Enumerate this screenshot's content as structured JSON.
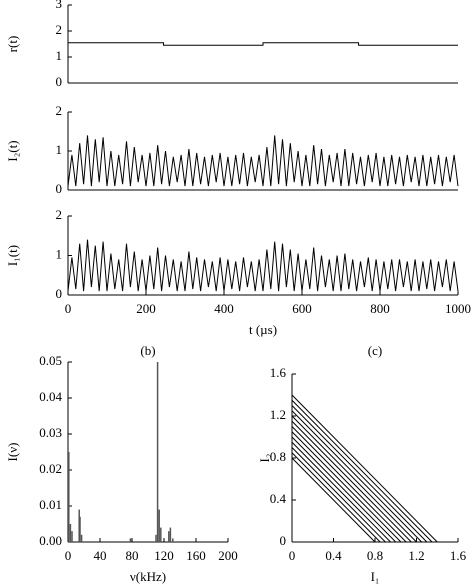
{
  "chart_data": [
    {
      "type": "line",
      "ylabel": "r(t)",
      "xlim": [
        0,
        1000
      ],
      "ylim": [
        0,
        3
      ],
      "yticks": [
        0,
        1,
        2,
        3
      ],
      "series": [
        {
          "color": "#000000",
          "x": [
            0,
            245,
            245,
            500,
            500,
            745,
            745,
            1000
          ],
          "values": [
            1.55,
            1.55,
            1.45,
            1.45,
            1.55,
            1.55,
            1.45,
            1.45
          ]
        }
      ]
    },
    {
      "type": "line",
      "ylabel": "I₂(t)",
      "xlim": [
        0,
        1000
      ],
      "ylim": [
        0,
        2
      ],
      "yticks": [
        0,
        1,
        2
      ],
      "x": [
        0,
        10,
        20,
        30,
        40,
        50,
        60,
        70,
        80,
        90,
        100,
        110,
        120,
        130,
        140,
        150,
        160,
        170,
        180,
        190,
        200,
        210,
        220,
        230,
        240,
        250,
        260,
        270,
        280,
        290,
        300,
        310,
        320,
        330,
        340,
        350,
        360,
        370,
        380,
        390,
        400,
        410,
        420,
        430,
        440,
        450,
        460,
        470,
        480,
        490,
        500,
        510,
        520,
        530,
        540,
        550,
        560,
        570,
        580,
        590,
        600,
        610,
        620,
        630,
        640,
        650,
        660,
        670,
        680,
        690,
        700,
        710,
        720,
        730,
        740,
        750,
        760,
        770,
        780,
        790,
        800,
        810,
        820,
        830,
        840,
        850,
        860,
        870,
        880,
        890,
        900,
        910,
        920,
        930,
        940,
        950,
        960,
        970,
        980,
        990,
        1000
      ],
      "series": [
        {
          "color": "#000000",
          "values": [
            0.1,
            0.9,
            0.1,
            1.2,
            0.15,
            1.4,
            0.1,
            1.3,
            0.2,
            1.35,
            0.1,
            1.0,
            0.1,
            0.9,
            0.15,
            1.25,
            0.1,
            1.1,
            0.2,
            0.9,
            0.1,
            0.95,
            0.1,
            1.15,
            0.15,
            1.0,
            0.1,
            0.85,
            0.2,
            0.9,
            0.1,
            1.05,
            0.1,
            0.95,
            0.15,
            0.85,
            0.1,
            0.9,
            0.2,
            0.95,
            0.1,
            0.85,
            0.1,
            0.9,
            0.15,
            0.95,
            0.1,
            0.85,
            0.2,
            0.9,
            0.1,
            1.1,
            0.1,
            1.4,
            0.15,
            1.3,
            0.1,
            1.2,
            0.2,
            1.0,
            0.1,
            0.9,
            0.1,
            1.15,
            0.15,
            1.05,
            0.1,
            0.9,
            0.2,
            0.95,
            0.1,
            1.05,
            0.1,
            0.95,
            0.15,
            0.85,
            0.1,
            0.9,
            0.2,
            0.95,
            0.1,
            0.85,
            0.1,
            0.9,
            0.15,
            0.85,
            0.1,
            0.9,
            0.2,
            0.85,
            0.1,
            0.9,
            0.1,
            0.85,
            0.15,
            0.9,
            0.1,
            0.85,
            0.2,
            0.9,
            0.1
          ]
        }
      ]
    },
    {
      "type": "line",
      "ylabel": "I₁(t)",
      "xlabel": "t (µs)",
      "xlim": [
        0,
        1000
      ],
      "ylim": [
        0,
        2
      ],
      "yticks": [
        0,
        1,
        2
      ],
      "xticks": [
        0,
        200,
        400,
        600,
        800,
        1000
      ],
      "x": [
        0,
        10,
        20,
        30,
        40,
        50,
        60,
        70,
        80,
        90,
        100,
        110,
        120,
        130,
        140,
        150,
        160,
        170,
        180,
        190,
        200,
        210,
        220,
        230,
        240,
        250,
        260,
        270,
        280,
        290,
        300,
        310,
        320,
        330,
        340,
        350,
        360,
        370,
        380,
        390,
        400,
        410,
        420,
        430,
        440,
        450,
        460,
        470,
        480,
        490,
        500,
        510,
        520,
        530,
        540,
        550,
        560,
        570,
        580,
        590,
        600,
        610,
        620,
        630,
        640,
        650,
        660,
        670,
        680,
        690,
        700,
        710,
        720,
        730,
        740,
        750,
        760,
        770,
        780,
        790,
        800,
        810,
        820,
        830,
        840,
        850,
        860,
        870,
        880,
        890,
        900,
        910,
        920,
        930,
        940,
        950,
        960,
        970,
        980,
        990,
        1000
      ],
      "series": [
        {
          "color": "#000000",
          "values": [
            0.1,
            0.95,
            0.15,
            1.3,
            0.1,
            1.4,
            0.2,
            1.25,
            0.1,
            1.35,
            0.1,
            1.05,
            0.15,
            0.9,
            0.1,
            1.3,
            0.2,
            1.1,
            0.1,
            0.9,
            0.1,
            1.0,
            0.15,
            1.2,
            0.1,
            1.0,
            0.2,
            0.9,
            0.1,
            0.85,
            0.1,
            1.1,
            0.15,
            0.95,
            0.1,
            0.9,
            0.2,
            0.85,
            0.1,
            0.95,
            0.1,
            0.9,
            0.15,
            0.85,
            0.1,
            0.95,
            0.2,
            0.85,
            0.1,
            0.9,
            0.1,
            1.15,
            0.15,
            1.35,
            0.1,
            1.3,
            0.2,
            1.15,
            0.1,
            1.05,
            0.1,
            0.9,
            0.15,
            1.2,
            0.1,
            1.0,
            0.2,
            0.9,
            0.1,
            1.0,
            0.1,
            1.05,
            0.15,
            0.9,
            0.1,
            0.85,
            0.2,
            0.95,
            0.1,
            0.9,
            0.1,
            0.85,
            0.15,
            0.9,
            0.1,
            0.9,
            0.2,
            0.85,
            0.1,
            0.9,
            0.1,
            0.85,
            0.15,
            0.9,
            0.1,
            0.85,
            0.2,
            0.9,
            0.1,
            0.85,
            0.1
          ]
        }
      ]
    },
    {
      "type": "bar",
      "title": "(b)",
      "xlabel": "ν(kHz)",
      "ylabel": "I(ν)",
      "xlim": [
        0,
        200
      ],
      "ylim": [
        0,
        0.05
      ],
      "xticks": [
        0,
        40,
        80,
        120,
        160,
        200
      ],
      "yticks": [
        {
          "value": 0,
          "label": "0.00"
        },
        0.01,
        0.02,
        0.03,
        0.04,
        0.05
      ],
      "color": "#555555",
      "x": [
        1,
        3,
        5,
        14,
        15,
        17,
        78,
        110,
        112,
        114,
        116,
        126,
        128,
        131
      ],
      "values": [
        0.025,
        0.005,
        0.003,
        0.009,
        0.007,
        0.002,
        0.001,
        0.002,
        0.05,
        0.009,
        0.004,
        0.003,
        0.004,
        0.001
      ]
    },
    {
      "type": "line",
      "title": "(c)",
      "xlabel": "I₁",
      "ylabel": "I₂",
      "xlim": [
        0,
        1.6
      ],
      "ylim": [
        0,
        1.6
      ],
      "xticks": [
        0,
        0.4,
        0.8,
        1.2,
        1.6
      ],
      "yticks": [
        0,
        0.4,
        0.8,
        1.2,
        1.6
      ],
      "series": [
        {
          "color": "#000000",
          "x": [
            0,
            0.8
          ],
          "values": [
            0.8,
            0
          ]
        },
        {
          "color": "#000000",
          "x": [
            0,
            0.85
          ],
          "values": [
            0.85,
            0
          ]
        },
        {
          "color": "#000000",
          "x": [
            0,
            0.9
          ],
          "values": [
            0.9,
            0
          ]
        },
        {
          "color": "#000000",
          "x": [
            0,
            0.95
          ],
          "values": [
            0.95,
            0
          ]
        },
        {
          "color": "#000000",
          "x": [
            0,
            1.0
          ],
          "values": [
            1.0,
            0
          ]
        },
        {
          "color": "#000000",
          "x": [
            0,
            1.05
          ],
          "values": [
            1.05,
            0
          ]
        },
        {
          "color": "#000000",
          "x": [
            0,
            1.1
          ],
          "values": [
            1.1,
            0
          ]
        },
        {
          "color": "#000000",
          "x": [
            0,
            1.15
          ],
          "values": [
            1.15,
            0
          ]
        },
        {
          "color": "#000000",
          "x": [
            0,
            1.2
          ],
          "values": [
            1.2,
            0
          ]
        },
        {
          "color": "#000000",
          "x": [
            0,
            1.25
          ],
          "values": [
            1.25,
            0
          ]
        },
        {
          "color": "#000000",
          "x": [
            0,
            1.3
          ],
          "values": [
            1.3,
            0
          ]
        },
        {
          "color": "#000000",
          "x": [
            0,
            1.35
          ],
          "values": [
            1.35,
            0
          ]
        },
        {
          "color": "#000000",
          "x": [
            0,
            1.4
          ],
          "values": [
            1.4,
            0
          ]
        }
      ]
    }
  ]
}
